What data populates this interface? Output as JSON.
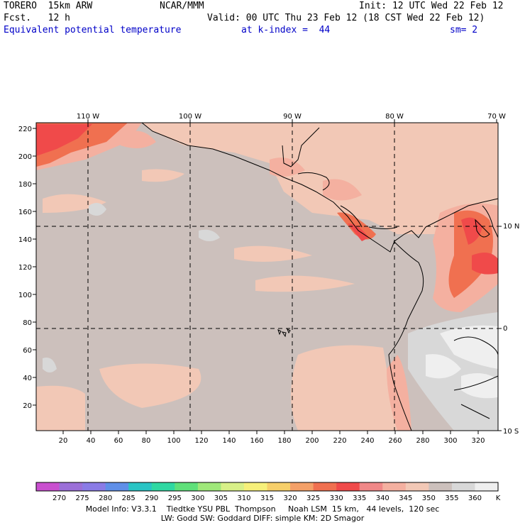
{
  "header": {
    "model": "TORERO  15km ARW",
    "center": "NCAR/MMM",
    "init": "Init: 12 UTC Wed 22 Feb 12",
    "fcst": "Fcst.   12 h",
    "valid": "Valid: 00 UTC Thu 23 Feb 12 (18 CST Wed 22 Feb 12)",
    "field": "Equivalent potential temperature",
    "level": "at k-index =  44",
    "smooth": "sm= 2"
  },
  "axes": {
    "top_lon": [
      "110 W",
      "100 W",
      "90 W",
      "80 W",
      "70 W"
    ],
    "right_lat": [
      "10 N",
      "0",
      "10 S"
    ],
    "left_y": [
      "220",
      "200",
      "180",
      "160",
      "140",
      "120",
      "100",
      "80",
      "60",
      "40",
      "20"
    ],
    "bottom_x": [
      "20",
      "40",
      "60",
      "80",
      "100",
      "120",
      "140",
      "160",
      "180",
      "200",
      "220",
      "240",
      "260",
      "280",
      "300",
      "320"
    ]
  },
  "legend": {
    "values": [
      "270",
      "275",
      "280",
      "285",
      "290",
      "295",
      "300",
      "305",
      "310",
      "315",
      "320",
      "325",
      "330",
      "335",
      "340",
      "345",
      "350",
      "355",
      "360"
    ],
    "unit": "K",
    "colors": [
      "#c94fcf",
      "#9b6fd8",
      "#8a7be6",
      "#5f8fe8",
      "#29c4c4",
      "#2fd8a2",
      "#5fe07a",
      "#9fe87a",
      "#d8f088",
      "#f6f07a",
      "#f6cf6a",
      "#f4a068",
      "#f07050",
      "#f04a4a",
      "#f08888",
      "#f4b0a0",
      "#f2c8b6",
      "#ccc0bc",
      "#d8d8d8",
      "#efefef"
    ]
  },
  "footer": {
    "line1": "Model Info: V3.3.1    Tiedtke YSU PBL  Thompson     Noah LSM  15 km,   44 levels,  120 sec",
    "line2": "LW: Godd SW: Goddard DIFF: simple KM: 2D Smagor"
  }
}
